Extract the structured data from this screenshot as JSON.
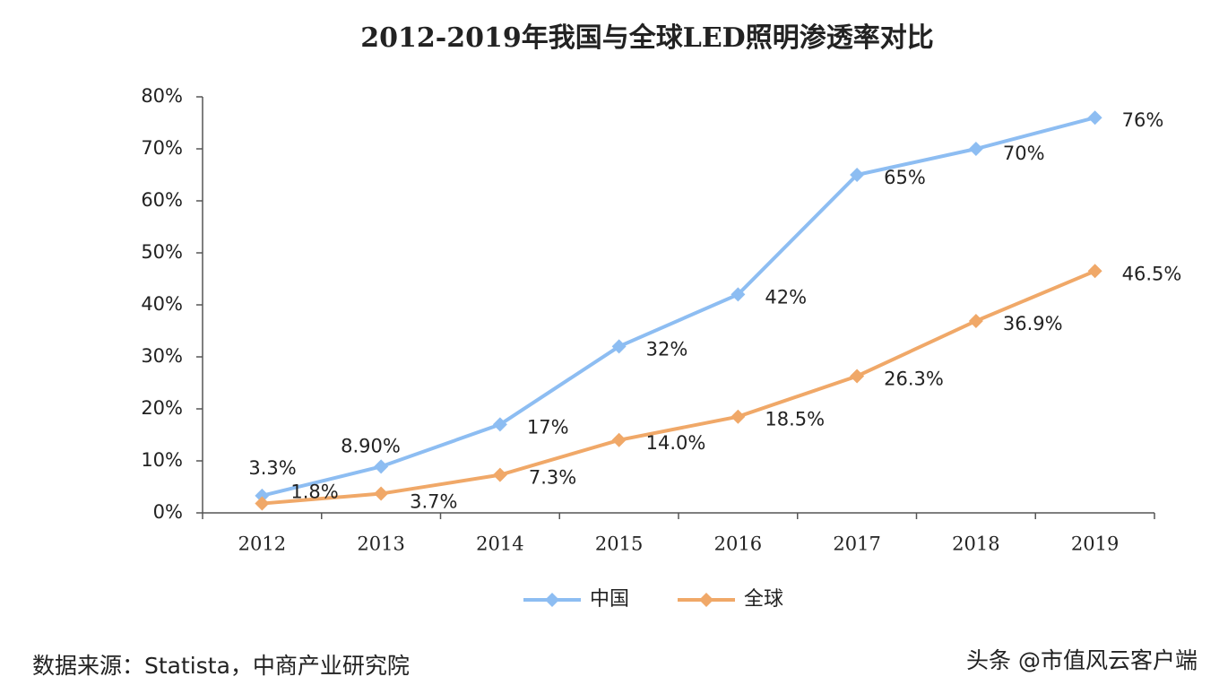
{
  "chart_data": {
    "type": "line",
    "title": "2012-2019年我国与全球LED照明渗透率对比",
    "categories": [
      "2012",
      "2013",
      "2014",
      "2015",
      "2016",
      "2017",
      "2018",
      "2019"
    ],
    "series": [
      {
        "name": "中国",
        "color": "#8dbdf2",
        "values": [
          3.3,
          8.9,
          17,
          32,
          42,
          65,
          70,
          76
        ],
        "value_labels": [
          "3.3%",
          "8.90%",
          "17%",
          "32%",
          "42%",
          "65%",
          "70%",
          "76%"
        ]
      },
      {
        "name": "全球",
        "color": "#f0a868",
        "values": [
          1.8,
          3.7,
          7.3,
          14.0,
          18.5,
          26.3,
          36.9,
          46.5
        ],
        "value_labels": [
          "1.8%",
          "3.7%",
          "7.3%",
          "14.0%",
          "18.5%",
          "26.3%",
          "36.9%",
          "46.5%"
        ]
      }
    ],
    "ylim": [
      0,
      80
    ],
    "yticks": [
      {
        "value": 0,
        "label": "0%"
      },
      {
        "value": 10,
        "label": "10%"
      },
      {
        "value": 20,
        "label": "20%"
      },
      {
        "value": 30,
        "label": "30%"
      },
      {
        "value": 40,
        "label": "40%"
      },
      {
        "value": 50,
        "label": "50%"
      },
      {
        "value": 60,
        "label": "60%"
      },
      {
        "value": 70,
        "label": "70%"
      },
      {
        "value": 80,
        "label": "80%"
      }
    ],
    "grid": false,
    "legend": "bottom",
    "source": "数据来源：Statista，中商产业研究院",
    "watermark": "头条 @市值风云客户端"
  }
}
